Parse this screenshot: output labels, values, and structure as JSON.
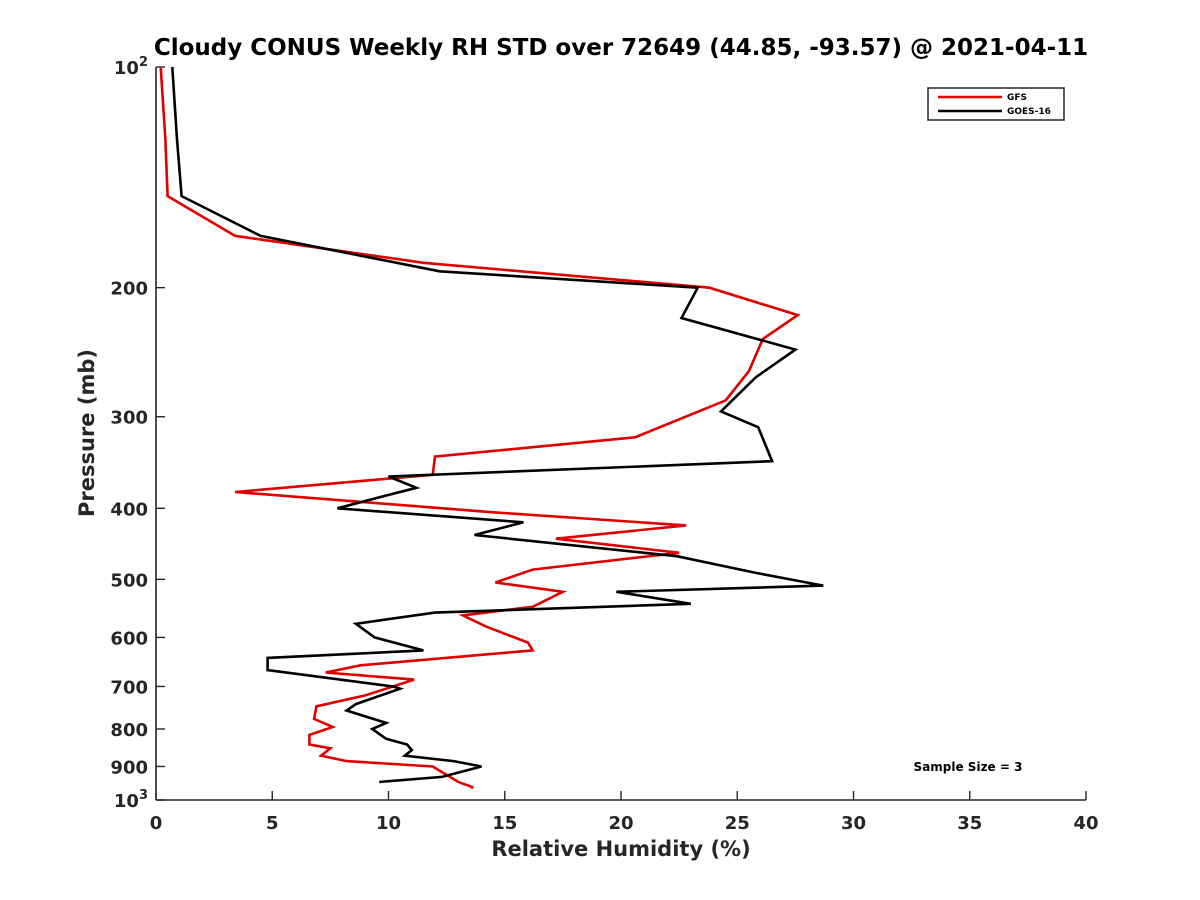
{
  "chart_data": {
    "type": "line",
    "title": "Cloudy CONUS Weekly RH STD over 72649 (44.85, -93.57) @ 2021-04-11",
    "xlabel": "Relative Humidity (%)",
    "ylabel": "Pressure (mb)",
    "xlim": [
      0,
      40
    ],
    "ylim": [
      100,
      1000
    ],
    "y_scale": "log",
    "y_reversed": true,
    "grid": false,
    "legend_position": "top-right",
    "x_ticks": [
      0,
      5,
      10,
      15,
      20,
      25,
      30,
      35,
      40
    ],
    "x_tick_labels": [
      "0",
      "5",
      "10",
      "15",
      "20",
      "25",
      "30",
      "35",
      "40"
    ],
    "y_ticks": [
      100,
      200,
      300,
      400,
      500,
      600,
      700,
      800,
      900,
      1000
    ],
    "y_tick_labels": [
      {
        "base": "10",
        "exp": "2"
      },
      {
        "base": "200",
        "exp": ""
      },
      {
        "base": "300",
        "exp": ""
      },
      {
        "base": "400",
        "exp": ""
      },
      {
        "base": "500",
        "exp": ""
      },
      {
        "base": "600",
        "exp": ""
      },
      {
        "base": "700",
        "exp": ""
      },
      {
        "base": "800",
        "exp": ""
      },
      {
        "base": "900",
        "exp": ""
      },
      {
        "base": "10",
        "exp": "3"
      }
    ],
    "annotation": "Sample Size = 3",
    "series": [
      {
        "name": "GFS",
        "color": "#e00000",
        "points": [
          [
            0.2,
            100
          ],
          [
            0.4,
            125
          ],
          [
            0.5,
            150
          ],
          [
            3.4,
            170
          ],
          [
            11.5,
            185
          ],
          [
            23.8,
            200
          ],
          [
            27.6,
            218
          ],
          [
            26.1,
            235
          ],
          [
            25.5,
            260
          ],
          [
            24.5,
            285
          ],
          [
            20.6,
            320
          ],
          [
            12.0,
            340
          ],
          [
            11.9,
            360
          ],
          [
            3.4,
            380
          ],
          [
            14.5,
            405
          ],
          [
            22.8,
            422
          ],
          [
            17.2,
            440
          ],
          [
            22.5,
            460
          ],
          [
            16.2,
            485
          ],
          [
            14.6,
            505
          ],
          [
            17.5,
            520
          ],
          [
            16.2,
            545
          ],
          [
            13.2,
            560
          ],
          [
            14.2,
            580
          ],
          [
            16.0,
            610
          ],
          [
            16.2,
            625
          ],
          [
            8.8,
            655
          ],
          [
            7.3,
            670
          ],
          [
            11.1,
            685
          ],
          [
            9.0,
            720
          ],
          [
            6.9,
            745
          ],
          [
            6.8,
            775
          ],
          [
            7.6,
            795
          ],
          [
            6.6,
            815
          ],
          [
            6.6,
            840
          ],
          [
            7.5,
            850
          ],
          [
            7.1,
            870
          ],
          [
            8.2,
            885
          ],
          [
            11.9,
            900
          ],
          [
            13.0,
            945
          ],
          [
            13.6,
            960
          ],
          [
            13.6,
            965
          ]
        ]
      },
      {
        "name": "GOES-16",
        "color": "#000000",
        "points": [
          [
            0.7,
            100
          ],
          [
            0.9,
            125
          ],
          [
            1.1,
            150
          ],
          [
            4.5,
            170
          ],
          [
            12.2,
            190
          ],
          [
            23.3,
            200
          ],
          [
            22.6,
            220
          ],
          [
            27.5,
            243
          ],
          [
            25.8,
            265
          ],
          [
            24.3,
            295
          ],
          [
            25.9,
            310
          ],
          [
            26.5,
            345
          ],
          [
            10.0,
            362
          ],
          [
            11.2,
            375
          ],
          [
            9.8,
            385
          ],
          [
            7.8,
            400
          ],
          [
            15.8,
            418
          ],
          [
            13.7,
            435
          ],
          [
            22.4,
            465
          ],
          [
            25.8,
            490
          ],
          [
            28.7,
            510
          ],
          [
            19.8,
            520
          ],
          [
            23.0,
            540
          ],
          [
            12.0,
            555
          ],
          [
            8.6,
            575
          ],
          [
            9.4,
            600
          ],
          [
            11.5,
            625
          ],
          [
            4.8,
            640
          ],
          [
            4.8,
            665
          ],
          [
            10.2,
            700
          ],
          [
            10.5,
            705
          ],
          [
            8.6,
            740
          ],
          [
            8.2,
            755
          ],
          [
            9.9,
            785
          ],
          [
            9.3,
            800
          ],
          [
            9.9,
            825
          ],
          [
            10.8,
            840
          ],
          [
            11.0,
            855
          ],
          [
            10.7,
            870
          ],
          [
            12.8,
            885
          ],
          [
            14.0,
            900
          ],
          [
            12.3,
            930
          ],
          [
            9.6,
            945
          ]
        ]
      }
    ]
  }
}
